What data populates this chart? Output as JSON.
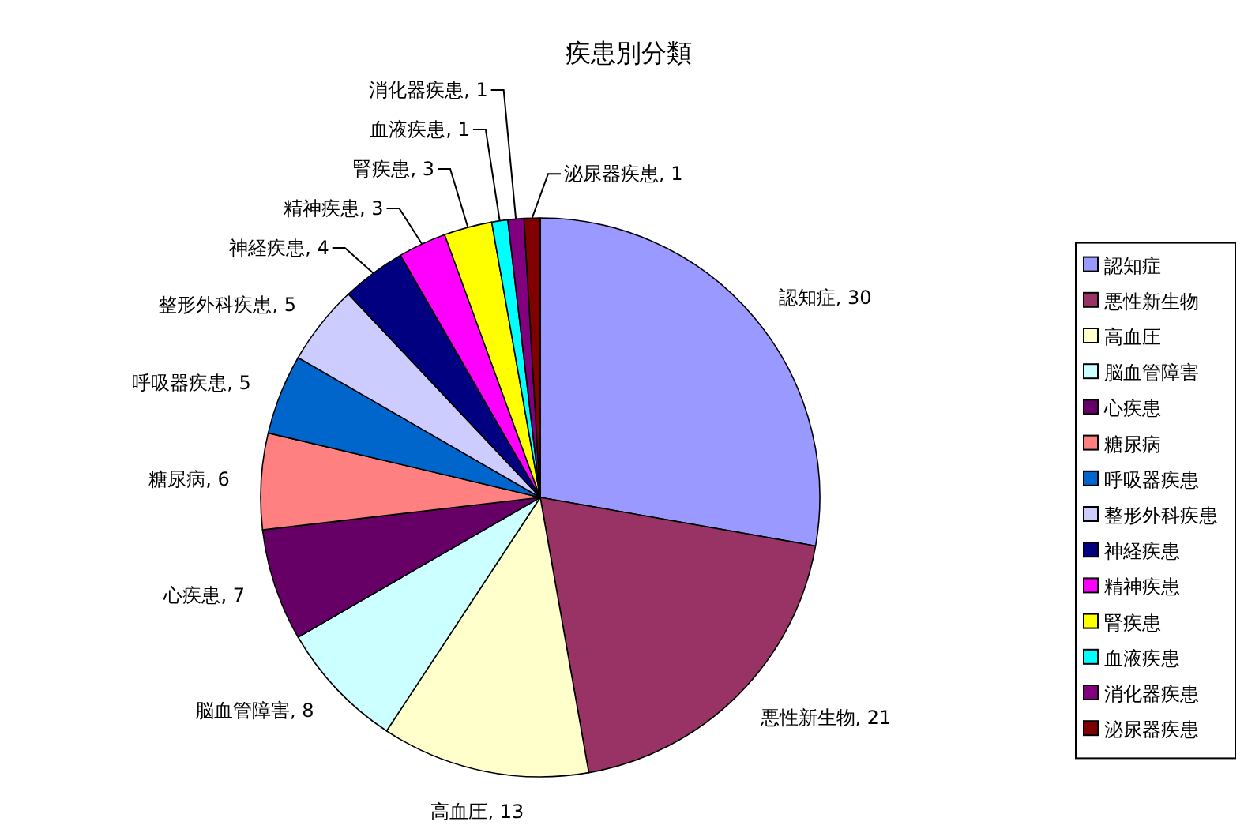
{
  "chart_data": {
    "type": "pie",
    "title": "疾患別分類",
    "categories": [
      "認知症",
      "悪性新生物",
      "高血圧",
      "脳血管障害",
      "心疾患",
      "糖尿病",
      "呼吸器疾患",
      "整形外科疾患",
      "神経疾患",
      "精神疾患",
      "腎疾患",
      "血液疾患",
      "消化器疾患",
      "泌尿器疾患"
    ],
    "values": [
      30,
      21,
      13,
      8,
      7,
      6,
      5,
      5,
      4,
      3,
      3,
      1,
      1,
      1
    ],
    "value_labels": [
      "認知症, 30",
      "悪性新生物, 21",
      "高血圧, 13",
      "脳血管障害, 8",
      "心疾患, 7",
      "糖尿病, 6",
      "呼吸器疾患, 5",
      "整形外科疾患, 5",
      "神経疾患, 4",
      "精神疾患, 3",
      "腎疾患, 3",
      "血液疾患, 1",
      "消化器疾患, 1",
      "泌尿器疾患, 1"
    ],
    "colors": [
      "#9999ff",
      "#993366",
      "#ffffcc",
      "#ccffff",
      "#660066",
      "#ff8080",
      "#0066cc",
      "#ccccff",
      "#000080",
      "#ff00ff",
      "#ffff00",
      "#00ffff",
      "#800080",
      "#800000"
    ],
    "legend": "right"
  }
}
